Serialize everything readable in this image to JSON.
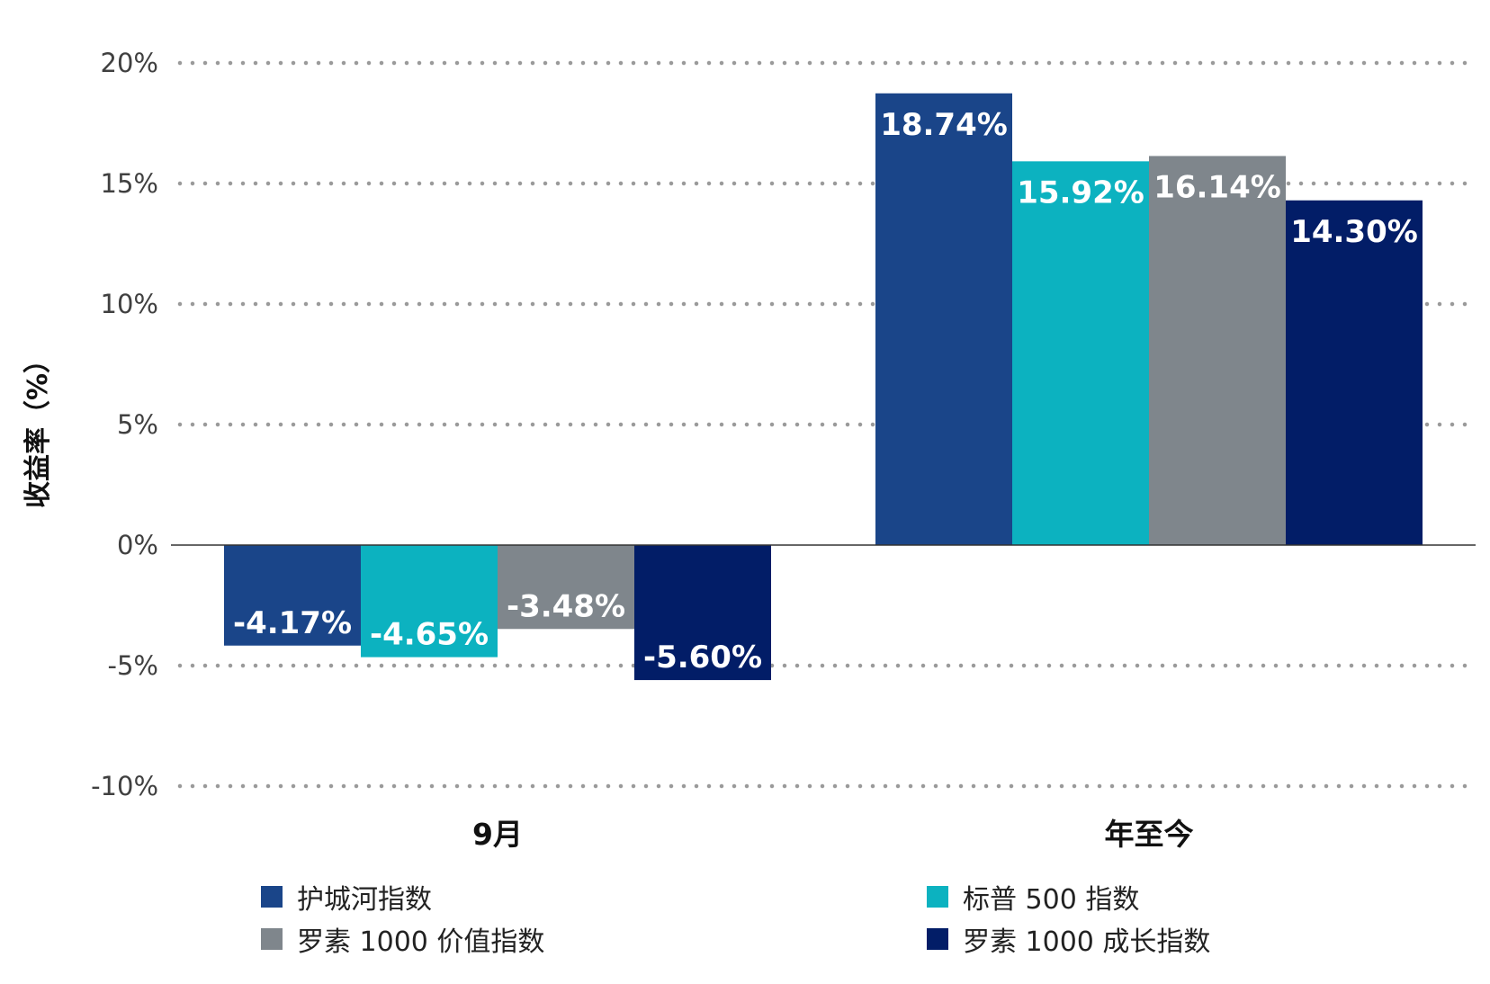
{
  "chart_data": {
    "type": "bar",
    "ylabel": "收益率（%）",
    "xlabel": "",
    "categories": [
      "9月",
      "年至今"
    ],
    "ylim": [
      -10,
      20
    ],
    "yticks": [
      20,
      15,
      10,
      5,
      0,
      -5,
      -10
    ],
    "ytick_labels": [
      "20%",
      "15%",
      "10%",
      "5%",
      "0%",
      "-5%",
      "-10%"
    ],
    "grid": "dotted horizontal",
    "legend_position": "bottom",
    "series": [
      {
        "name": "护城河指数",
        "color": "#1a4589",
        "values": [
          -4.17,
          18.74
        ],
        "labels": [
          "-4.17%",
          "18.74%"
        ]
      },
      {
        "name": "标普 500 指数",
        "color": "#0cb2c0",
        "values": [
          -4.65,
          15.92
        ],
        "labels": [
          "-4.65%",
          "15.92%"
        ]
      },
      {
        "name": "罗素 1000 价值指数",
        "color": "#7f868c",
        "values": [
          -3.48,
          16.14
        ],
        "labels": [
          "-3.48%",
          "16.14%"
        ]
      },
      {
        "name": "罗素 1000 成长指数",
        "color": "#021d67",
        "values": [
          -5.6,
          14.3
        ],
        "labels": [
          "-5.60%",
          "14.30%"
        ]
      }
    ]
  }
}
